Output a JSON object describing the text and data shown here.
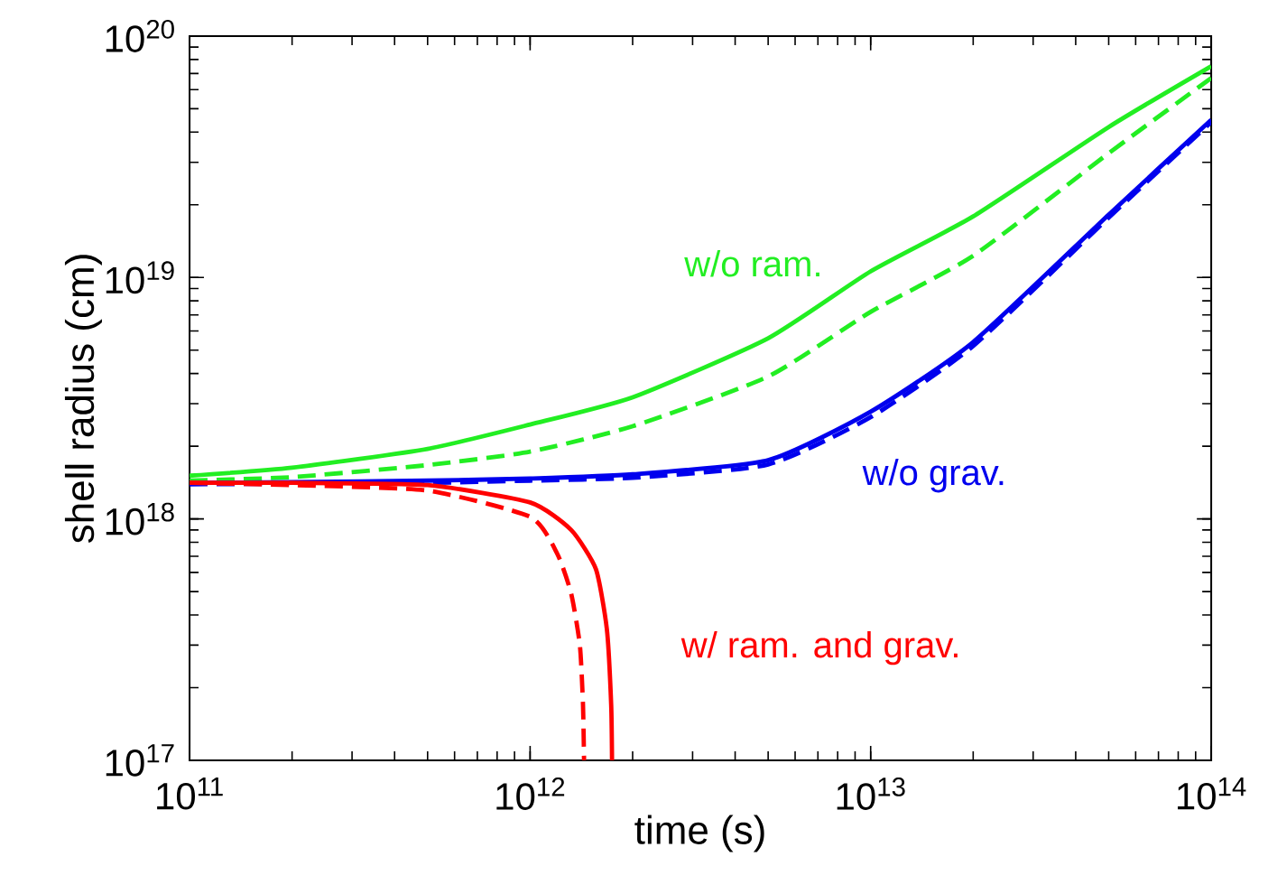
{
  "chart_data": {
    "type": "line",
    "xlabel": "time (s)",
    "ylabel": "shell radius (cm)",
    "log": "xy",
    "grid": false,
    "xlim": [
      100000000000.0,
      100000000000000.0
    ],
    "ylim": [
      1e+17,
      1e+20
    ],
    "xticks": [
      {
        "value": 100000000000.0,
        "label": "10$^{11}$"
      },
      {
        "value": 1000000000000.0,
        "label": "10$^{12}$"
      },
      {
        "value": 10000000000000.0,
        "label": "10$^{13}$"
      },
      {
        "value": 100000000000000.0,
        "label": "10$^{14}$"
      }
    ],
    "yticks": [
      {
        "value": 1e+17,
        "label": "10$^{17}$"
      },
      {
        "value": 1e+18,
        "label": "10$^{18}$"
      },
      {
        "value": 1e+19,
        "label": "10$^{19}$"
      },
      {
        "value": 1e+20,
        "label": "10$^{20}$"
      }
    ],
    "series": [
      {
        "color": "#22ee22",
        "line_style": "solid",
        "x": [
          100000000000.0,
          200000000000.0,
          500000000000.0,
          1000000000000.0,
          2000000000000.0,
          5000000000000.0,
          10000000000000.0,
          20000000000000.0,
          50000000000000.0,
          100000000000000.0
        ],
        "values": [
          1.51e+18,
          1.63e+18,
          1.95e+18,
          2.46e+18,
          3.19e+18,
          5.6e+18,
          1.06e+19,
          1.79e+19,
          4.2e+19,
          7.5e+19
        ]
      },
      {
        "color": "#22ee22",
        "line_style": "dashed",
        "x": [
          100000000000.0,
          200000000000.0,
          500000000000.0,
          1000000000000.0,
          2000000000000.0,
          5000000000000.0,
          10000000000000.0,
          20000000000000.0,
          50000000000000.0,
          100000000000000.0
        ],
        "values": [
          1.44e+18,
          1.49e+18,
          1.67e+18,
          1.9e+18,
          2.42e+18,
          3.89e+18,
          7.2e+18,
          1.23e+19,
          3.27e+19,
          6.7e+19
        ]
      },
      {
        "color": "#0000ee",
        "line_style": "solid",
        "x": [
          100000000000.0,
          200000000000.0,
          500000000000.0,
          1000000000000.0,
          2000000000000.0,
          5000000000000.0,
          10000000000000.0,
          20000000000000.0,
          50000000000000.0,
          100000000000000.0
        ],
        "values": [
          1.41e+18,
          1.42e+18,
          1.44e+18,
          1.47e+18,
          1.53e+18,
          1.75e+18,
          2.78e+18,
          5.4e+18,
          1.82e+19,
          4.5e+19
        ]
      },
      {
        "color": "#0000ee",
        "line_style": "dashed",
        "x": [
          100000000000.0,
          200000000000.0,
          500000000000.0,
          1000000000000.0,
          2000000000000.0,
          5000000000000.0,
          10000000000000.0,
          20000000000000.0,
          50000000000000.0,
          100000000000000.0
        ],
        "values": [
          1.39e+18,
          1.4e+18,
          1.41e+18,
          1.44e+18,
          1.48e+18,
          1.68e+18,
          2.64e+18,
          5.2e+18,
          1.77e+19,
          4.4e+19
        ]
      },
      {
        "color": "#ff0000",
        "line_style": "solid",
        "x": [
          100000000000.0,
          200000000000.0,
          500000000000.0,
          1000000000000.0,
          1320000000000.0,
          1560000000000.0,
          1680000000000.0,
          1730000000000.0,
          1740000000000.0
        ],
        "values": [
          1.41e+18,
          1.41e+18,
          1.38e+18,
          1.17e+18,
          9e+17,
          6.2e+17,
          3.5e+17,
          1.7e+17,
          1e+17
        ]
      },
      {
        "color": "#ff0000",
        "line_style": "dashed",
        "x": [
          100000000000.0,
          200000000000.0,
          500000000000.0,
          1000000000000.0,
          1200000000000.0,
          1320000000000.0,
          1400000000000.0,
          1430000000000.0,
          1440000000000.0
        ],
        "values": [
          1.41e+18,
          1.38e+18,
          1.31e+18,
          1.02e+18,
          7.2e+17,
          4.9e+17,
          3e+17,
          1.7e+17,
          1e+17
        ]
      }
    ],
    "annotations": [
      "w/o  ram.",
      "w/o  grav.",
      "w/ ram. and grav."
    ]
  }
}
